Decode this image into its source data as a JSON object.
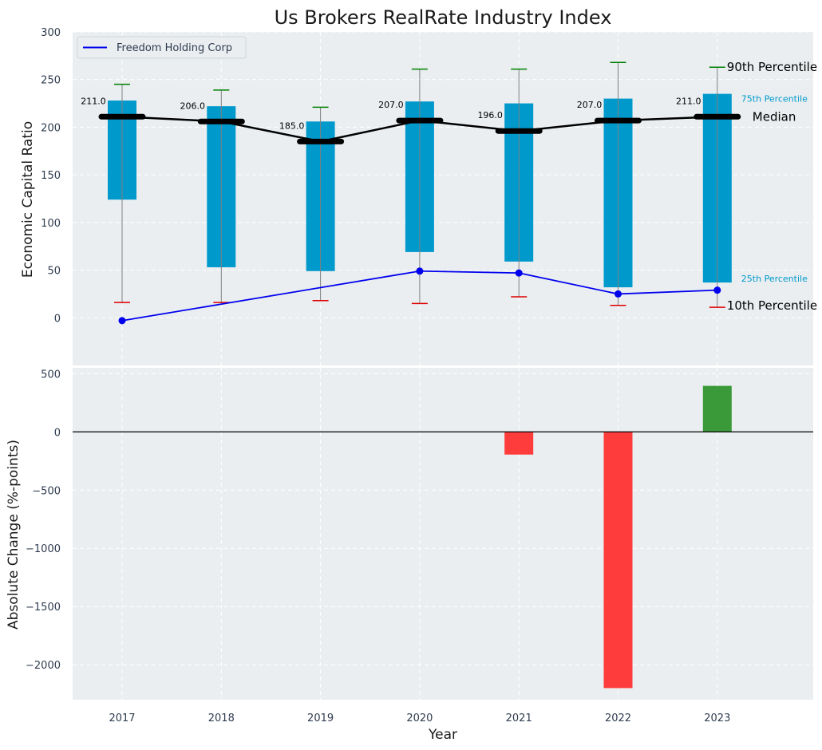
{
  "colors": {
    "panel_bg": "#eaeef0",
    "grid": "#ffffff",
    "box": "#0099cc",
    "median_line": "#000000",
    "company_line": "#0000ee",
    "p90_cap": "#008000",
    "p10_cap": "#dd0000",
    "whisker": "#808080",
    "bar_positive": "#3a9a3a",
    "bar_negative": "#ff3c3c",
    "zero_line": "#000000",
    "pct75_label": "#0099cc"
  },
  "chart_data": [
    {
      "type": "box",
      "title": "Us Brokers RealRate Industry Index",
      "ylabel": "Economic Capital Ratio",
      "xlabel": "",
      "ylim": [
        -50,
        300
      ],
      "yticks": [
        0,
        50,
        100,
        150,
        200,
        250,
        300
      ],
      "grid": true,
      "legend": {
        "position": "top-left",
        "entries": [
          "Freedom Holding Corp"
        ]
      },
      "categories": [
        "2017",
        "2018",
        "2019",
        "2020",
        "2021",
        "2022",
        "2023"
      ],
      "p10": [
        16,
        16,
        18,
        15,
        22,
        13,
        11
      ],
      "p25": [
        124,
        53,
        49,
        69,
        59,
        32,
        37
      ],
      "median": [
        211.0,
        206.0,
        185.0,
        207.0,
        196.0,
        207.0,
        211.0
      ],
      "p75": [
        228,
        222,
        206,
        227,
        225,
        230,
        235
      ],
      "p90": [
        245,
        239,
        221,
        261,
        261,
        268,
        263
      ],
      "median_labels": [
        "211.0",
        "206.0",
        "185.0",
        "207.0",
        "196.0",
        "207.0",
        "211.0"
      ],
      "series": [
        {
          "name": "Freedom Holding Corp",
          "values": [
            -3,
            null,
            null,
            49,
            47,
            25,
            29
          ]
        }
      ],
      "annotations": {
        "p90": "90th Percentile",
        "p75": "75th Percentile",
        "median": "Median",
        "p25": "25th Percentile",
        "p10": "10th Percentile"
      }
    },
    {
      "type": "bar",
      "ylabel": "Absolute Change (%-points)",
      "xlabel": "Year",
      "ylim": [
        -2300,
        550
      ],
      "yticks": [
        -2000,
        -1500,
        -1000,
        -500,
        0,
        500
      ],
      "ytick_labels": [
        "−2000",
        "−1500",
        "−1000",
        "−500",
        "0",
        "500"
      ],
      "grid": true,
      "categories": [
        "2017",
        "2018",
        "2019",
        "2020",
        "2021",
        "2022",
        "2023"
      ],
      "values": [
        null,
        null,
        null,
        null,
        -195,
        -2200,
        395
      ]
    }
  ]
}
